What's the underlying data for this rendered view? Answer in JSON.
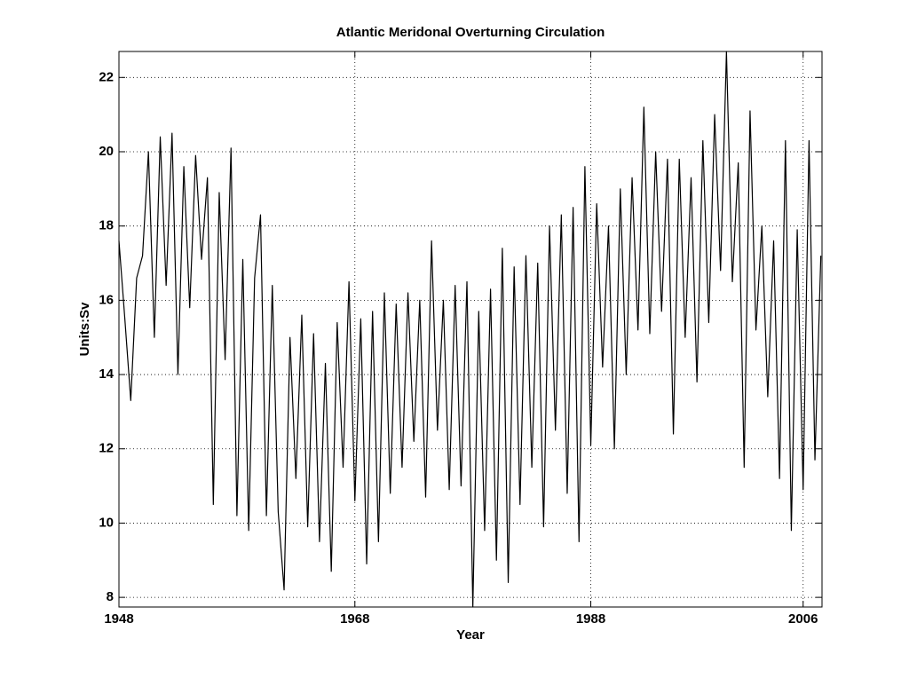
{
  "chart_data": {
    "type": "line",
    "title": "Atlantic Meridonal Overturning Circulation",
    "xlabel": "Year",
    "ylabel": "Units:Sv",
    "color": "#000000",
    "grid": true,
    "xlim": [
      1948,
      2007.6
    ],
    "ylim": [
      7.74,
      22.7
    ],
    "xticks": [
      1948,
      1968,
      1988,
      2006
    ],
    "yticks": [
      8,
      10,
      12,
      14,
      16,
      18,
      20,
      22
    ],
    "x": [
      1948,
      1948.5,
      1949,
      1949.5,
      1950,
      1950.5,
      1951,
      1951.5,
      1952,
      1952.5,
      1953,
      1953.5,
      1954,
      1954.5,
      1955,
      1955.5,
      1956,
      1956.5,
      1957,
      1957.5,
      1958,
      1958.5,
      1959,
      1959.5,
      1960,
      1960.5,
      1961,
      1961.5,
      1962,
      1962.5,
      1963,
      1963.5,
      1964,
      1964.5,
      1965,
      1965.5,
      1966,
      1966.5,
      1967,
      1967.5,
      1968,
      1968.5,
      1969,
      1969.5,
      1970,
      1970.5,
      1971,
      1971.5,
      1972,
      1972.5,
      1973,
      1973.5,
      1974,
      1974.5,
      1975,
      1975.5,
      1976,
      1976.5,
      1977,
      1977.5,
      1978,
      1978.5,
      1979,
      1979.5,
      1980,
      1980.5,
      1981,
      1981.5,
      1982,
      1982.5,
      1983,
      1983.5,
      1984,
      1984.5,
      1985,
      1985.5,
      1986,
      1986.5,
      1987,
      1987.5,
      1988,
      1988.5,
      1989,
      1989.5,
      1990,
      1990.5,
      1991,
      1991.5,
      1992,
      1992.5,
      1993,
      1993.5,
      1994,
      1994.5,
      1995,
      1995.5,
      1996,
      1996.5,
      1997,
      1997.5,
      1998,
      1998.5,
      1999,
      1999.5,
      2000,
      2000.5,
      2001,
      2001.5,
      2002,
      2002.5,
      2003,
      2003.5,
      2004,
      2004.5,
      2005,
      2005.5,
      2006,
      2006.5,
      2007,
      2007.5
    ],
    "values": [
      17.6,
      15.5,
      13.3,
      16.6,
      17.2,
      20.0,
      15.0,
      20.4,
      16.4,
      20.5,
      14.0,
      19.6,
      15.8,
      19.9,
      17.1,
      19.3,
      10.5,
      18.9,
      14.4,
      20.1,
      10.2,
      17.1,
      9.8,
      16.6,
      18.3,
      10.2,
      16.4,
      10.3,
      8.2,
      15.0,
      11.2,
      15.6,
      9.9,
      15.1,
      9.5,
      14.3,
      8.7,
      15.4,
      11.5,
      16.5,
      10.6,
      15.5,
      8.9,
      15.7,
      9.5,
      16.2,
      10.8,
      15.9,
      11.5,
      16.2,
      12.2,
      16.0,
      10.7,
      17.6,
      12.5,
      16.0,
      10.9,
      16.4,
      11.0,
      16.5,
      7.74,
      15.7,
      9.8,
      16.3,
      9.0,
      17.4,
      8.4,
      16.9,
      10.5,
      17.2,
      11.5,
      17.0,
      9.9,
      18.0,
      12.5,
      18.3,
      10.8,
      18.5,
      9.5,
      19.6,
      12.1,
      18.6,
      14.2,
      18.0,
      12.0,
      19.0,
      14.0,
      19.3,
      15.2,
      21.2,
      15.1,
      20.0,
      15.7,
      19.8,
      12.4,
      19.8,
      15.0,
      19.3,
      13.8,
      20.3,
      15.4,
      21.0,
      16.8,
      22.7,
      16.5,
      19.7,
      11.5,
      21.1,
      15.2,
      18.0,
      13.4,
      17.6,
      11.2,
      20.3,
      9.8,
      17.9,
      10.9,
      20.3,
      11.7,
      17.2
    ]
  }
}
